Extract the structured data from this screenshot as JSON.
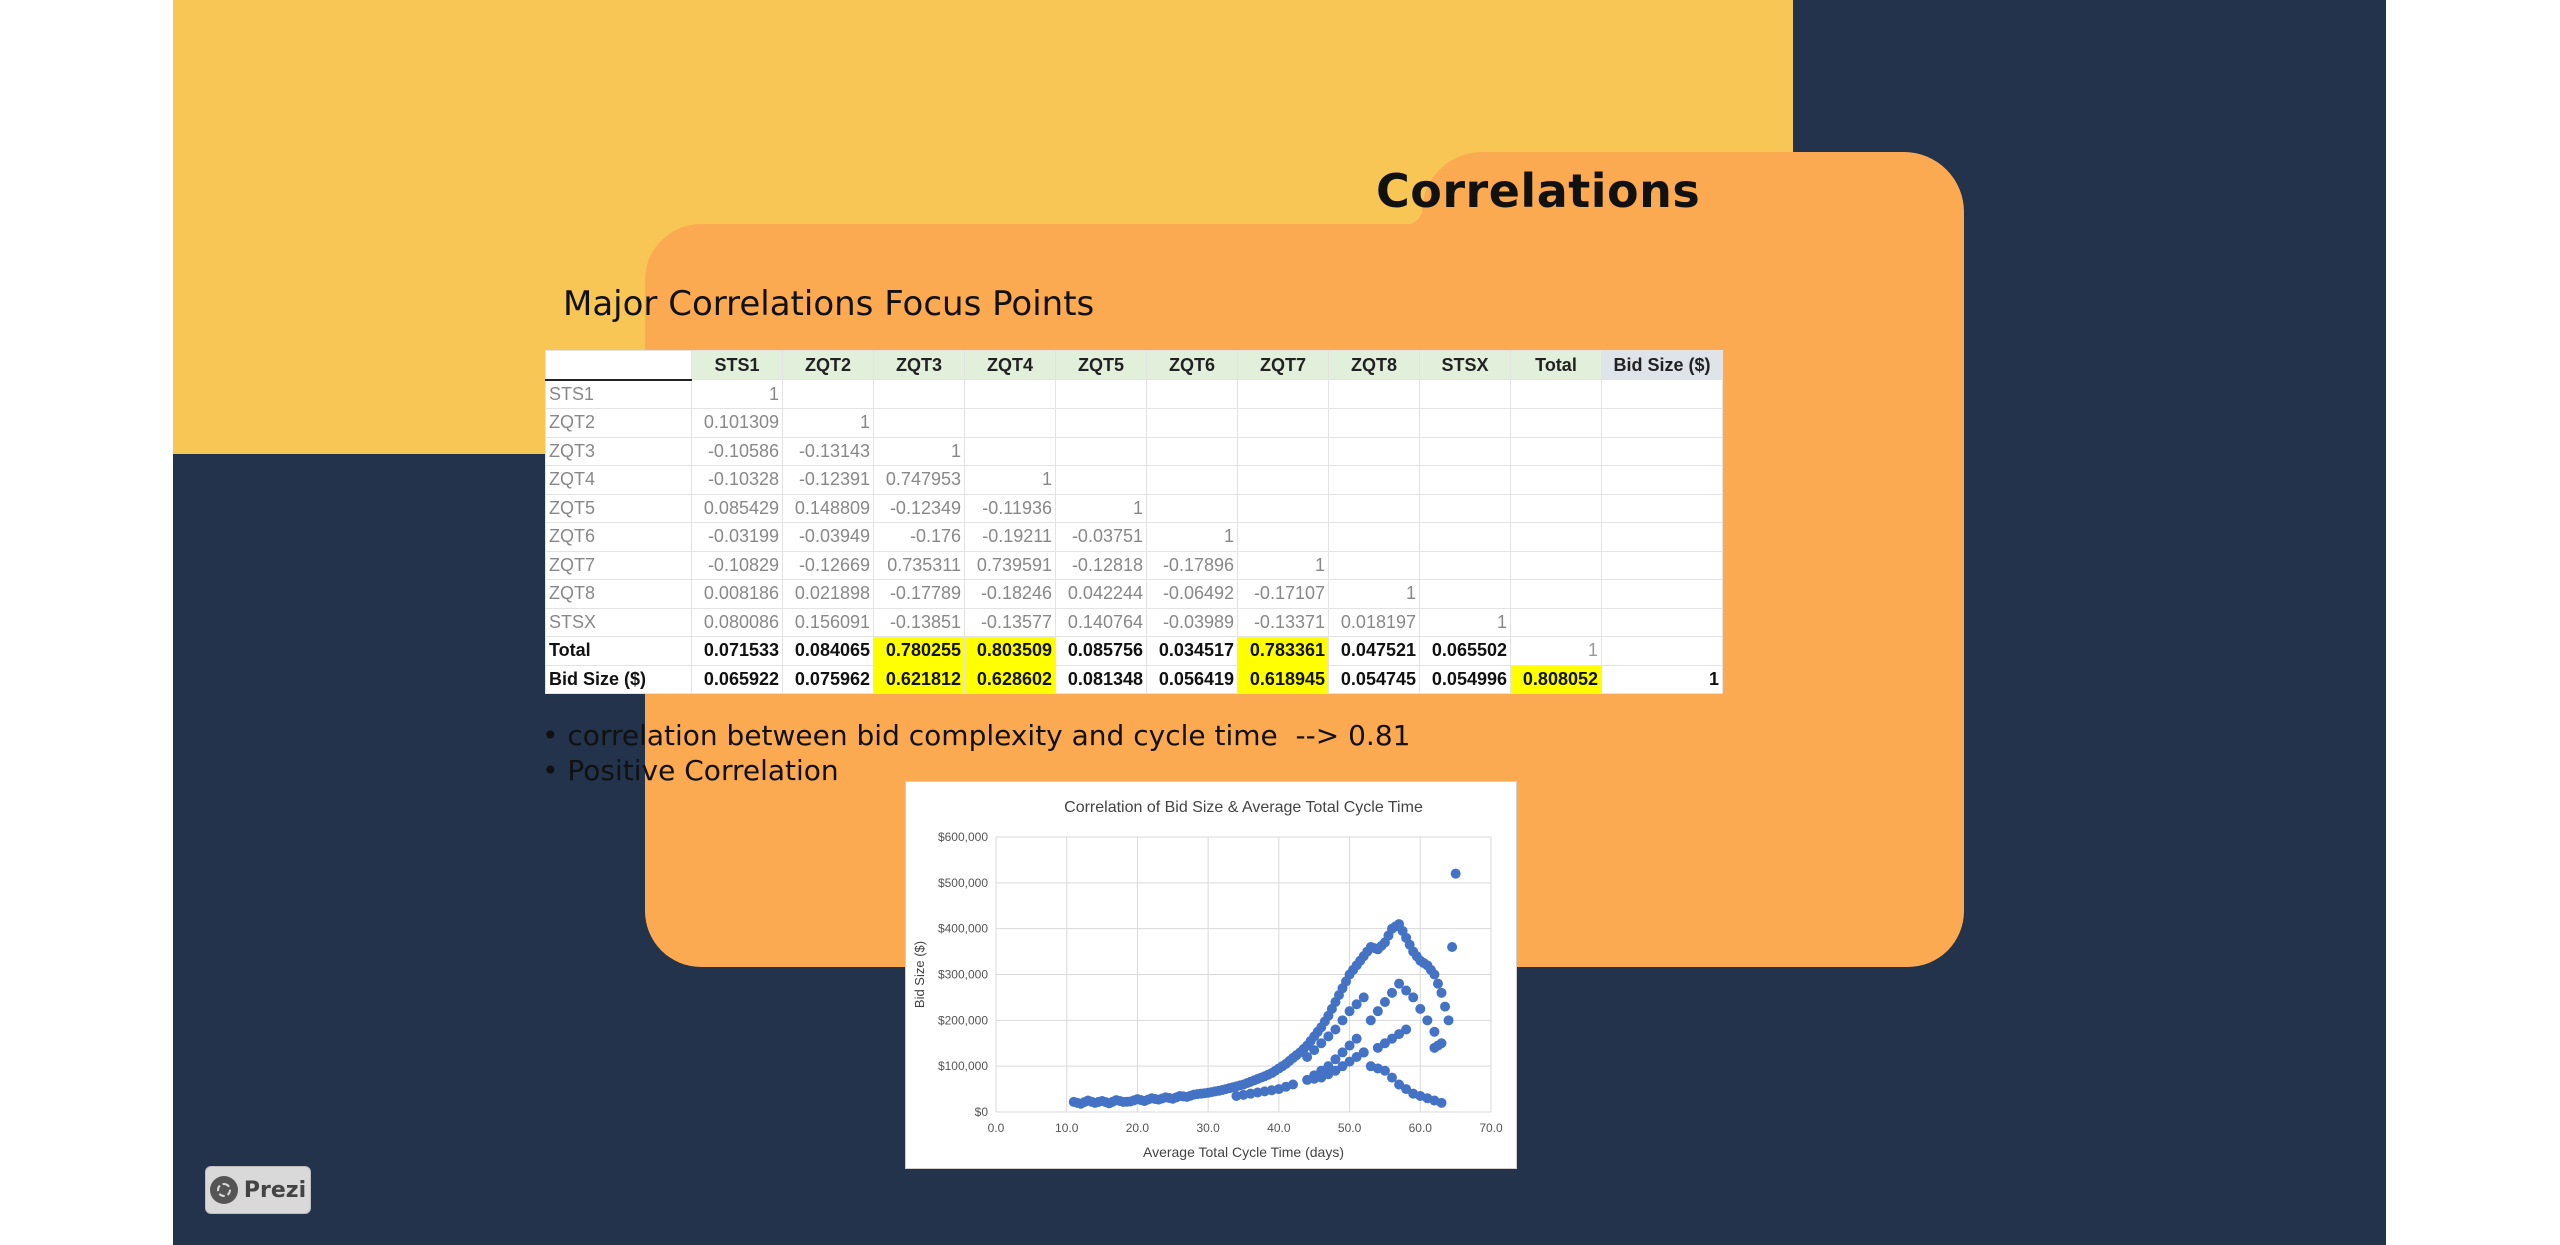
{
  "slide": {
    "title": "Correlations",
    "subtitle": "Major Correlations Focus Points",
    "bullets": [
      "• correlation between bid complexity and cycle time  --> 0.81",
      "• Positive Correlation"
    ],
    "colors": {
      "background": "#22334b",
      "yellow": "#f7c655",
      "folder": "#fcaa52",
      "highlight": "#ffff00",
      "marker": "#4472c4"
    }
  },
  "table": {
    "headers": [
      "",
      "STS1",
      "ZQT2",
      "ZQT3",
      "ZQT4",
      "ZQT5",
      "ZQT6",
      "ZQT7",
      "ZQT8",
      "STSX",
      "Total",
      "Bid Size ($)"
    ],
    "rows": [
      [
        "STS1",
        "1",
        "",
        "",
        "",
        "",
        "",
        "",
        "",
        "",
        "",
        ""
      ],
      [
        "ZQT2",
        "0.101309",
        "1",
        "",
        "",
        "",
        "",
        "",
        "",
        "",
        "",
        ""
      ],
      [
        "ZQT3",
        "-0.10586",
        "-0.13143",
        "1",
        "",
        "",
        "",
        "",
        "",
        "",
        "",
        ""
      ],
      [
        "ZQT4",
        "-0.10328",
        "-0.12391",
        "0.747953",
        "1",
        "",
        "",
        "",
        "",
        "",
        "",
        ""
      ],
      [
        "ZQT5",
        "0.085429",
        "0.148809",
        "-0.12349",
        "-0.11936",
        "1",
        "",
        "",
        "",
        "",
        "",
        ""
      ],
      [
        "ZQT6",
        "-0.03199",
        "-0.03949",
        "-0.176",
        "-0.19211",
        "-0.03751",
        "1",
        "",
        "",
        "",
        "",
        ""
      ],
      [
        "ZQT7",
        "-0.10829",
        "-0.12669",
        "0.735311",
        "0.739591",
        "-0.12818",
        "-0.17896",
        "1",
        "",
        "",
        "",
        ""
      ],
      [
        "ZQT8",
        "0.008186",
        "0.021898",
        "-0.17789",
        "-0.18246",
        "0.042244",
        "-0.06492",
        "-0.17107",
        "1",
        "",
        "",
        ""
      ],
      [
        "STSX",
        "0.080086",
        "0.156091",
        "-0.13851",
        "-0.13577",
        "0.140764",
        "-0.03989",
        "-0.13371",
        "0.018197",
        "1",
        "",
        ""
      ],
      [
        "Total",
        "0.071533",
        "0.084065",
        "0.780255",
        "0.803509",
        "0.085756",
        "0.034517",
        "0.783361",
        "0.047521",
        "0.065502",
        "1",
        ""
      ],
      [
        "Bid Size ($)",
        "0.065922",
        "0.075962",
        "0.621812",
        "0.628602",
        "0.081348",
        "0.056419",
        "0.618945",
        "0.054745",
        "0.054996",
        "0.808052",
        "1"
      ]
    ]
  },
  "chart_data": {
    "type": "scatter",
    "title": "Correlation of Bid Size & Average Total Cycle Time",
    "xlabel": "Average Total Cycle Time (days)",
    "ylabel": "Bid Size ($)",
    "xlim": [
      0,
      70
    ],
    "ylim": [
      0,
      600000
    ],
    "xticks": [
      "0.0",
      "10.0",
      "20.0",
      "30.0",
      "40.0",
      "50.0",
      "60.0",
      "70.0"
    ],
    "yticks": [
      "$0",
      "$100,000",
      "$200,000",
      "$300,000",
      "$400,000",
      "$500,000",
      "$600,000"
    ],
    "grid": true,
    "series": [
      {
        "name": "Bid Size vs Cycle Time",
        "points": [
          [
            11,
            22000
          ],
          [
            12,
            18000
          ],
          [
            13,
            25000
          ],
          [
            14,
            20000
          ],
          [
            15,
            24000
          ],
          [
            16,
            19000
          ],
          [
            17,
            26000
          ],
          [
            18,
            22000
          ],
          [
            19,
            23000
          ],
          [
            20,
            28000
          ],
          [
            21,
            24000
          ],
          [
            22,
            30000
          ],
          [
            23,
            27000
          ],
          [
            24,
            32000
          ],
          [
            25,
            29000
          ],
          [
            26,
            35000
          ],
          [
            27,
            33000
          ],
          [
            28,
            38000
          ],
          [
            29,
            40000
          ],
          [
            30,
            42000
          ],
          [
            31,
            45000
          ],
          [
            32,
            48000
          ],
          [
            33,
            52000
          ],
          [
            34,
            56000
          ],
          [
            35,
            60000
          ],
          [
            36,
            66000
          ],
          [
            37,
            72000
          ],
          [
            38,
            78000
          ],
          [
            39,
            85000
          ],
          [
            40,
            95000
          ],
          [
            41,
            105000
          ],
          [
            42,
            118000
          ],
          [
            43,
            130000
          ],
          [
            44,
            145000
          ],
          [
            45,
            165000
          ],
          [
            46,
            185000
          ],
          [
            47,
            210000
          ],
          [
            48,
            240000
          ],
          [
            49,
            270000
          ],
          [
            50,
            300000
          ],
          [
            51,
            320000
          ],
          [
            52,
            340000
          ],
          [
            53,
            360000
          ],
          [
            54,
            355000
          ],
          [
            55,
            370000
          ],
          [
            56,
            400000
          ],
          [
            57,
            410000
          ],
          [
            58,
            380000
          ],
          [
            59,
            350000
          ],
          [
            60,
            330000
          ],
          [
            61,
            320000
          ],
          [
            62,
            300000
          ],
          [
            63,
            260000
          ],
          [
            64,
            200000
          ],
          [
            65,
            520000
          ],
          [
            52,
            250000
          ],
          [
            50,
            220000
          ],
          [
            48,
            180000
          ],
          [
            46,
            150000
          ],
          [
            44,
            120000
          ],
          [
            53,
            200000
          ],
          [
            55,
            240000
          ],
          [
            57,
            280000
          ],
          [
            59,
            250000
          ],
          [
            61,
            200000
          ],
          [
            63,
            150000
          ],
          [
            62,
            140000
          ],
          [
            58,
            180000
          ],
          [
            56,
            160000
          ],
          [
            54,
            140000
          ],
          [
            45,
            80000
          ],
          [
            47,
            100000
          ],
          [
            49,
            130000
          ],
          [
            51,
            160000
          ],
          [
            53,
            100000
          ],
          [
            55,
            90000
          ],
          [
            57,
            60000
          ],
          [
            59,
            40000
          ],
          [
            61,
            30000
          ],
          [
            63,
            20000
          ],
          [
            42,
            60000
          ],
          [
            40,
            50000
          ],
          [
            38,
            45000
          ],
          [
            36,
            40000
          ],
          [
            34,
            35000
          ],
          [
            44,
            70000
          ],
          [
            46,
            75000
          ],
          [
            48,
            90000
          ],
          [
            50,
            110000
          ],
          [
            52,
            130000
          ]
        ]
      }
    ]
  },
  "footer": {
    "badge_label": "Prezi"
  }
}
